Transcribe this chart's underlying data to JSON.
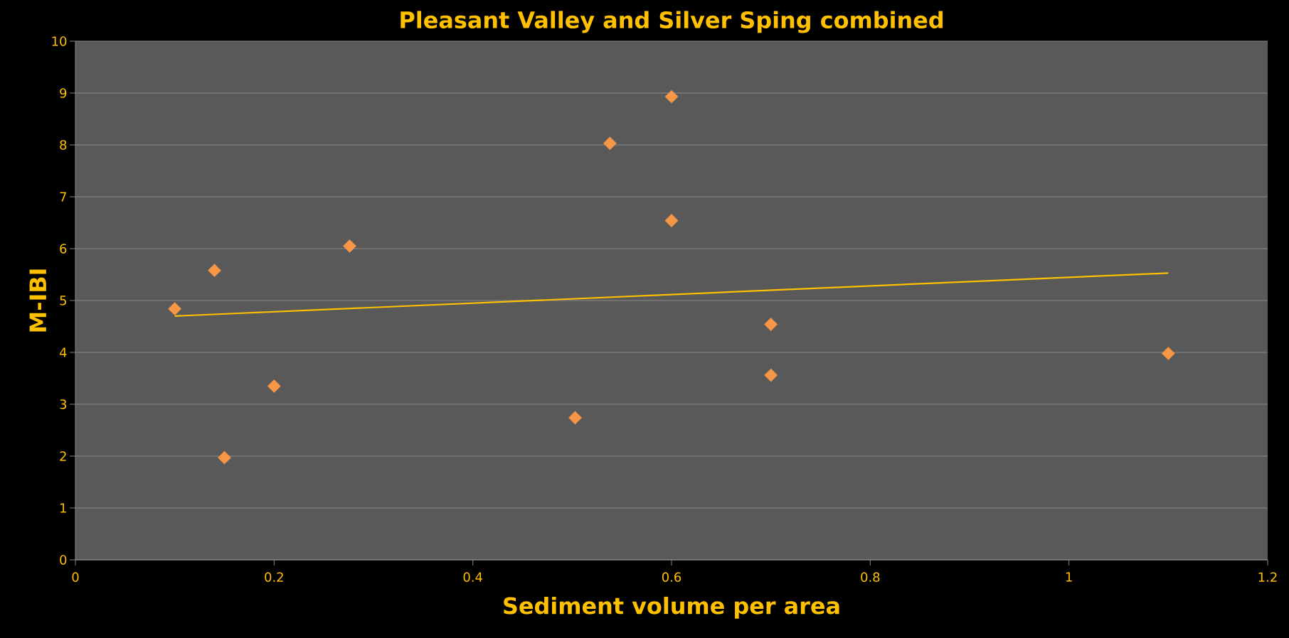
{
  "chart_data": {
    "type": "scatter",
    "title": "Pleasant Valley and Silver Sping combined",
    "xlabel": "Sediment volume per area",
    "ylabel": "M-IBI",
    "xlim": [
      0,
      1.2
    ],
    "ylim": [
      0,
      10
    ],
    "xticks": [
      0,
      0.2,
      0.4,
      0.6,
      0.8,
      1,
      1.2
    ],
    "yticks": [
      0,
      1,
      2,
      3,
      4,
      5,
      6,
      7,
      8,
      9,
      10
    ],
    "grid": "y",
    "series": [
      {
        "marker": "diamond",
        "color": "#f79646",
        "x": [
          0.1,
          0.14,
          0.15,
          0.2,
          0.276,
          0.503,
          0.538,
          0.6,
          0.6,
          0.7,
          0.7,
          1.1
        ],
        "values": [
          4.84,
          5.58,
          1.97,
          3.35,
          6.05,
          2.74,
          8.03,
          8.93,
          6.54,
          4.54,
          3.56,
          3.98
        ]
      },
      {
        "type": "line",
        "marker": "none",
        "line_style": "solid",
        "color": "#ffc000",
        "x": [
          0.1,
          1.1
        ],
        "values": [
          4.7,
          5.53
        ]
      }
    ]
  }
}
